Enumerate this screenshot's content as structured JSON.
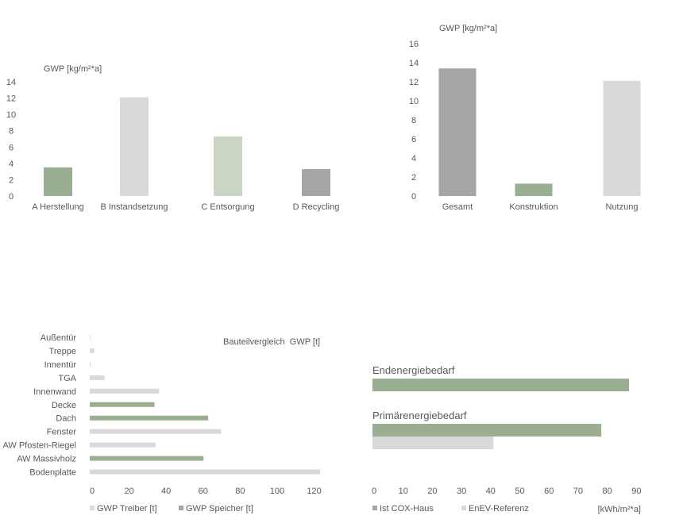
{
  "colors": {
    "green": "#9aaf92",
    "light_green": "#cbd5c6",
    "light_gray": "#d9d9d9",
    "mid_gray": "#a6a6a6",
    "text": "#595959"
  },
  "chart_data": [
    {
      "id": "lifecycle",
      "type": "bar",
      "title": "",
      "ylabel": "GWP [kg/m²*a]",
      "categories": [
        "A Herstellung",
        "B Instandsetzung",
        "C Entsorgung",
        "D Recycling"
      ],
      "values": [
        3.5,
        12.1,
        7.3,
        3.3
      ],
      "bar_colors": [
        "#9aaf92",
        "#d9d9d9",
        "#cbd5c6",
        "#a6a6a6"
      ],
      "ylim": [
        0,
        14
      ],
      "yticks": [
        0,
        2,
        4,
        6,
        8,
        10,
        12,
        14
      ]
    },
    {
      "id": "total",
      "type": "bar",
      "title": "",
      "ylabel": "GWP [kg/m²*a]",
      "categories": [
        "Gesamt",
        "Konstruktion",
        "Nutzung"
      ],
      "values": [
        13.4,
        1.3,
        12.1
      ],
      "bar_colors": [
        "#a6a6a6",
        "#9aaf92",
        "#d9d9d9"
      ],
      "ylim": [
        0,
        16
      ],
      "yticks": [
        0,
        2,
        4,
        6,
        8,
        10,
        12,
        14,
        16
      ]
    },
    {
      "id": "components",
      "type": "bar",
      "orientation": "horizontal",
      "title": "Bauteilvergleich  GWP [t]",
      "categories": [
        "Außentür",
        "Treppe",
        "Innentür",
        "TGA",
        "Innenwand",
        "Decke",
        "Dach",
        "Fenster",
        "AW Pfosten-Riegel",
        "AW Massivholz",
        "Bodenplatte"
      ],
      "values": [
        0.3,
        2.5,
        0.5,
        8,
        37.5,
        35,
        64,
        71,
        35.5,
        61.5,
        124.5
      ],
      "series_of_row": [
        "GWP Treiber [t]",
        "GWP Treiber [t]",
        "GWP Treiber [t]",
        "GWP Treiber [t]",
        "GWP Treiber [t]",
        "GWP Speicher [t]",
        "GWP Speicher [t]",
        "GWP Treiber [t]",
        "GWP Treiber [t]",
        "GWP Speicher [t]",
        "GWP Treiber [t]"
      ],
      "legend": [
        {
          "name": "GWP Treiber [t]",
          "color": "#d9d9d9"
        },
        {
          "name": "GWP Speicher [t]",
          "color": "#9aaf92"
        }
      ],
      "xlim": [
        0,
        130
      ],
      "xticks": [
        0,
        20,
        40,
        60,
        80,
        100,
        120
      ]
    },
    {
      "id": "energy",
      "type": "bar",
      "orientation": "horizontal",
      "title": "",
      "groups": [
        "Endenergiebedarf",
        "Primärenergiebedarf"
      ],
      "series": [
        {
          "name": "Ist COX-Haus",
          "color": "#9aaf92",
          "values": [
            88,
            78.5
          ]
        },
        {
          "name": "EnEV-Referenz",
          "color": "#d9d9d9",
          "values": [
            null,
            41.5
          ]
        }
      ],
      "xlabel": "[kWh/m²*a]",
      "xlim": [
        0,
        90
      ],
      "xticks": [
        0,
        10,
        20,
        30,
        40,
        50,
        60,
        70,
        80,
        90
      ]
    }
  ]
}
